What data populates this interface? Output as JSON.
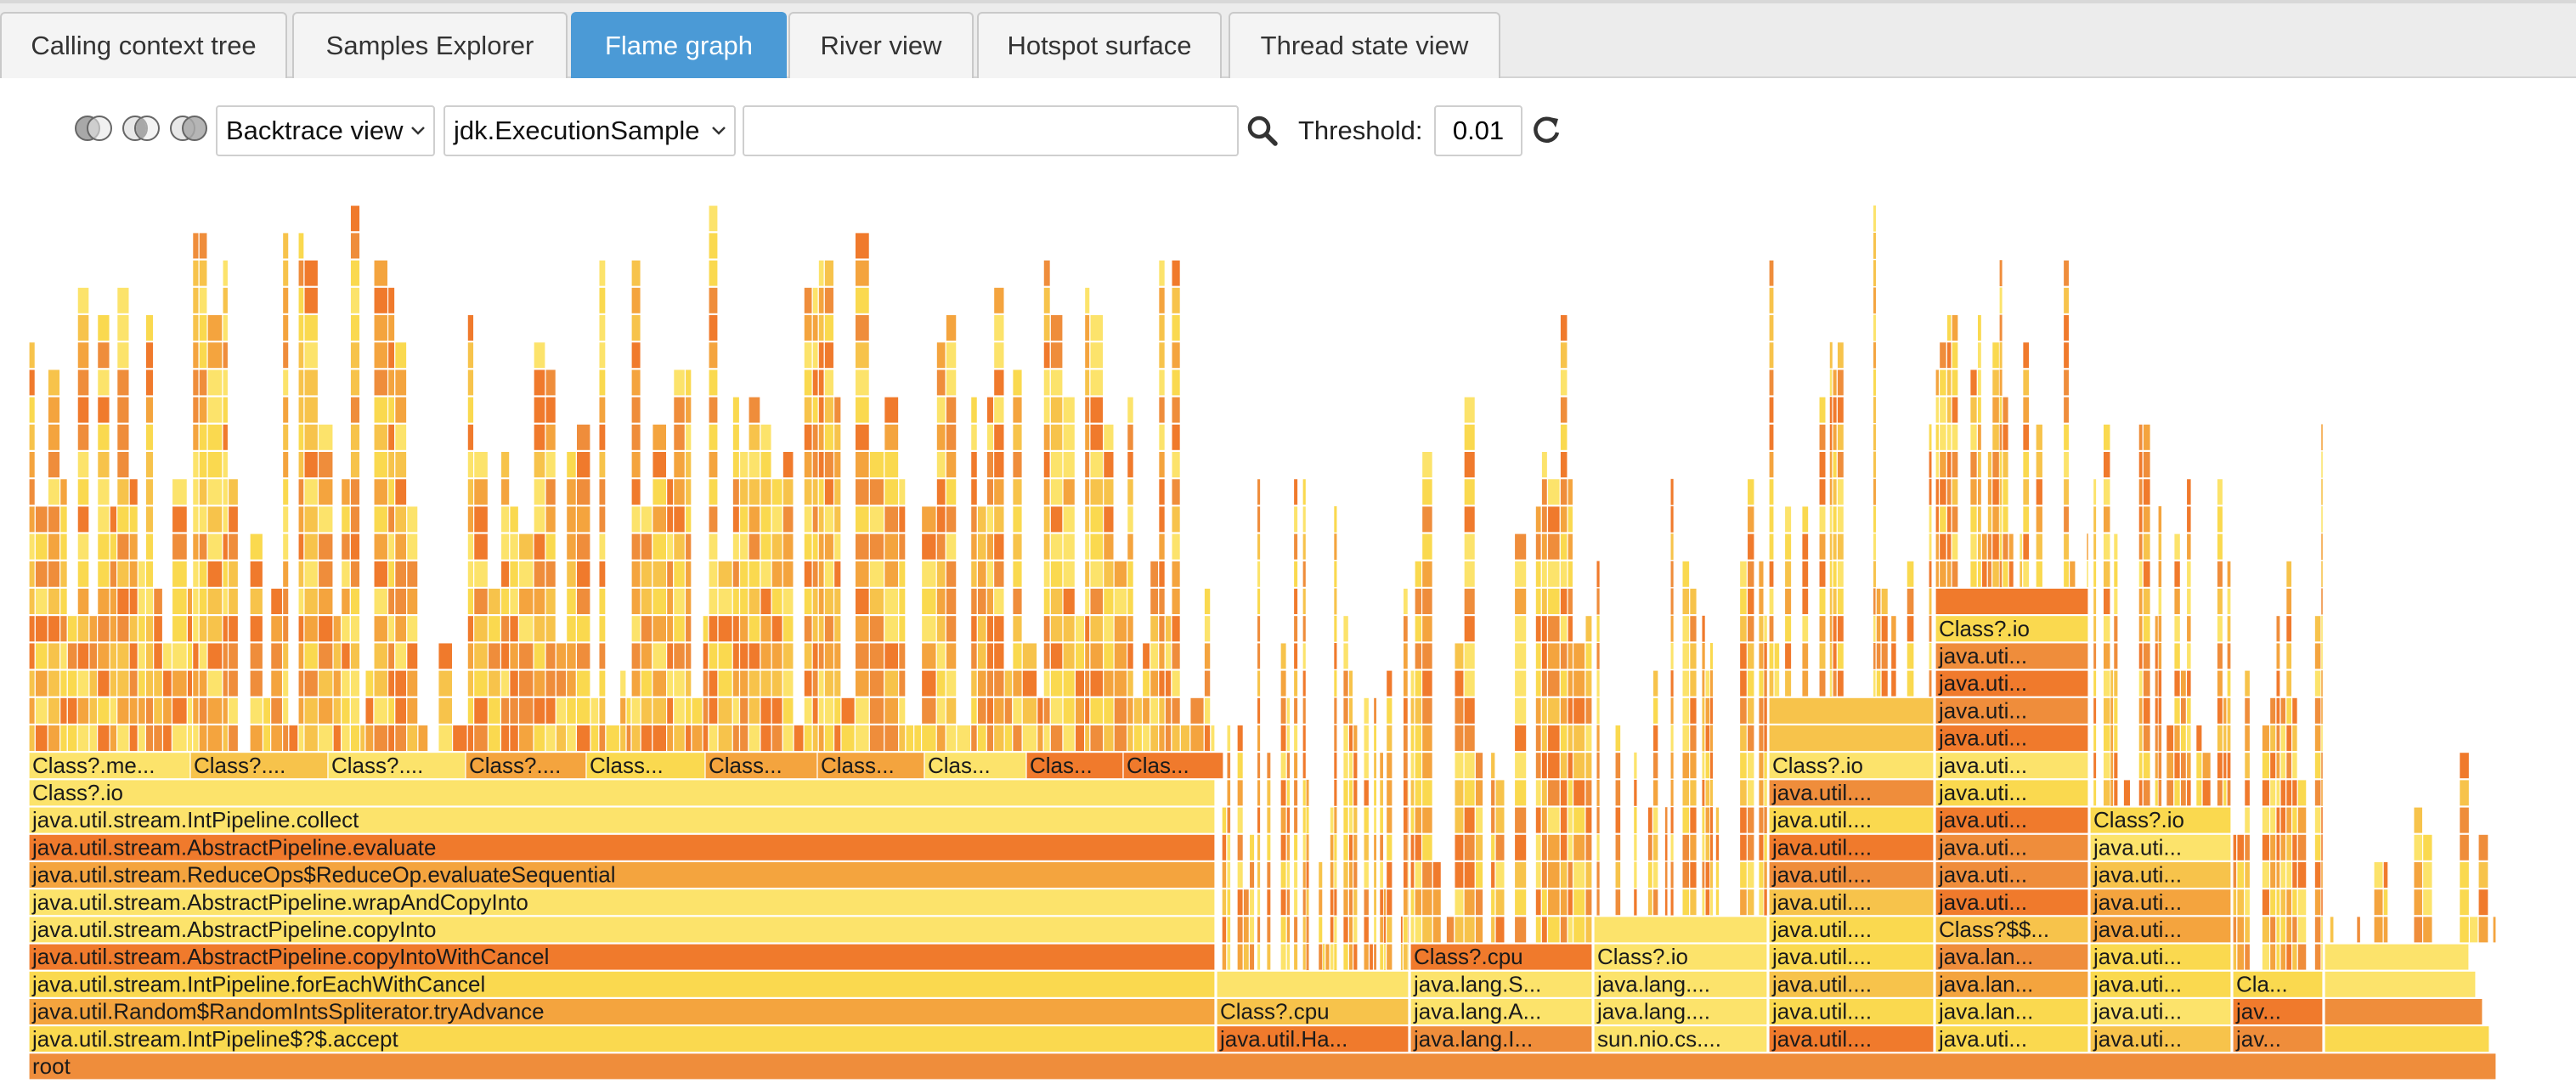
{
  "tabs": [
    {
      "label": "Calling context tree",
      "active": false
    },
    {
      "label": "Samples Explorer",
      "active": false
    },
    {
      "label": "Flame graph",
      "active": true
    },
    {
      "label": "River view",
      "active": false
    },
    {
      "label": "Hotspot surface",
      "active": false
    },
    {
      "label": "Thread state view",
      "active": false
    }
  ],
  "toolbar": {
    "venn_icons": [
      "venn-left-icon",
      "venn-intersection-icon",
      "venn-right-icon"
    ],
    "view_select": "Backtrace view",
    "event_select": "jdk.ExecutionSample",
    "search_value": "",
    "search_icon": "search-icon",
    "threshold_label": "Threshold:",
    "threshold_value": "0.01",
    "refresh_icon": "refresh-icon"
  },
  "colors": {
    "tab_active": "#4b9ad6",
    "flame_palette": [
      "#ef8d3b",
      "#f4a43e",
      "#f7c34b",
      "#fad94f",
      "#fce36b",
      "#f07a2c"
    ]
  },
  "flame_graph": {
    "root": "root",
    "main_stack": [
      "java.util.stream.IntPipeline$?$.accept",
      "java.util.Random$RandomIntsSpliterator.tryAdvance",
      "java.util.stream.IntPipeline.forEachWithCancel",
      "java.util.stream.AbstractPipeline.copyIntoWithCancel",
      "java.util.stream.AbstractPipeline.copyInto",
      "java.util.stream.AbstractPipeline.wrapAndCopyInto",
      "java.util.stream.ReduceOps$ReduceOp.evaluateSequential",
      "java.util.stream.AbstractPipeline.evaluate",
      "java.util.stream.IntPipeline.collect",
      "Class?.io"
    ],
    "main_top_row": [
      "Class?.me...",
      "Class?....",
      "Class?....",
      "Class?....",
      "Class...",
      "Class...",
      "Class...",
      "Clas...",
      "Clas...",
      "Clas..."
    ],
    "col_hashmap": [
      "java.util.Ha...",
      "Class?.cpu"
    ],
    "col_lang_a": [
      "java.lang.I...",
      "java.lang.A...",
      "java.lang.S...",
      "Class?.cpu"
    ],
    "col_lang_b": [
      "sun.nio.cs....",
      "java.lang....",
      "java.lang....",
      "Class?.io"
    ],
    "col_util_a": [
      "java.util....",
      "java.util....",
      "java.util....",
      "java.util....",
      "java.util....",
      "java.util....",
      "java.util....",
      "java.util....",
      "java.util....",
      "java.util....",
      "Class?.io"
    ],
    "col_util_b": [
      "java.uti...",
      "java.lan...",
      "java.lan...",
      "java.lan...",
      "Class?$$...",
      "java.uti...",
      "java.uti...",
      "java.uti...",
      "java.uti...",
      "java.uti...",
      "java.uti...",
      "java.uti...",
      "java.uti...",
      "java.uti...",
      "java.uti...",
      "Class?.io"
    ],
    "col_util_c": [
      "java.uti...",
      "java.uti...",
      "java.uti...",
      "java.uti...",
      "java.uti...",
      "java.uti...",
      "java.uti...",
      "java.uti...",
      "Class?.io"
    ],
    "col_small": [
      "jav...",
      "jav...",
      "Cla..."
    ]
  }
}
